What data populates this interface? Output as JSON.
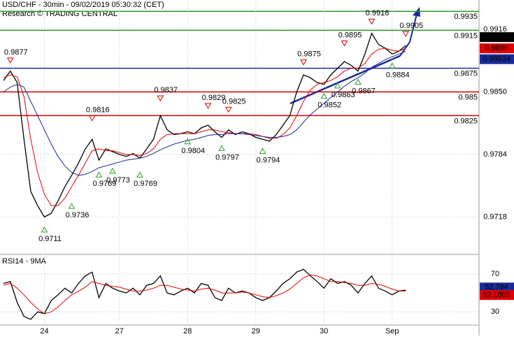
{
  "chart_data": [
    {
      "type": "line",
      "title": "USD/CHF - 30min - 09/02/2019 05:30:32 (CET)",
      "subtitle": "Research © TRADING CENTRAL",
      "categories": [
        null,
        null,
        null,
        null,
        null,
        null,
        "24",
        null,
        null,
        null,
        null,
        null,
        null,
        null,
        null,
        null,
        null,
        "27",
        null,
        null,
        null,
        null,
        null,
        null,
        null,
        null,
        null,
        "28",
        null,
        null,
        null,
        null,
        null,
        null,
        null,
        null,
        null,
        "29",
        null,
        null,
        null,
        null,
        null,
        null,
        null,
        null,
        null,
        "30",
        null,
        null,
        null,
        null,
        null,
        null,
        null,
        null,
        null,
        "Sep",
        null,
        null
      ],
      "ylim": [
        0.968,
        0.9947
      ],
      "yticks": [
        0.9718,
        0.9784,
        {
          "value": 0.985,
          "label": "0.9850"
        },
        0.9916
      ],
      "series": [
        {
          "color": "#000000",
          "values": [
            0.9862,
            0.9872,
            0.986,
            0.98,
            0.9745,
            0.973,
            0.9718,
            0.9722,
            0.9735,
            0.975,
            0.9762,
            0.9775,
            0.979,
            0.98,
            0.9778,
            0.979,
            0.9787,
            0.9784,
            0.9782,
            0.9785,
            0.978,
            0.979,
            0.98,
            0.9825,
            0.981,
            0.9805,
            0.9806,
            0.9808,
            0.9806,
            0.9812,
            0.9815,
            0.9808,
            0.9802,
            0.981,
            0.9805,
            0.9808,
            0.9806,
            0.9802,
            0.98,
            0.9798,
            0.9805,
            0.9815,
            0.9825,
            0.985,
            0.9868,
            0.9865,
            0.986,
            0.9858,
            0.9868,
            0.9875,
            0.9882,
            0.9878,
            0.9872,
            0.989,
            0.9912,
            0.99,
            0.9896,
            0.989,
            0.9893,
            0.9899
          ]
        },
        {
          "color": "#e00000",
          "values": [
            0.9865,
            0.9868,
            0.9866,
            0.9845,
            0.98,
            0.9765,
            0.9742,
            0.973,
            0.973,
            0.9738,
            0.975,
            0.9762,
            0.9775,
            0.9788,
            0.979,
            0.9788,
            0.9788,
            0.9786,
            0.9784,
            0.9784,
            0.9783,
            0.9785,
            0.979,
            0.98,
            0.9805,
            0.9806,
            0.9806,
            0.9806,
            0.9806,
            0.9808,
            0.981,
            0.981,
            0.9808,
            0.9807,
            0.9806,
            0.9806,
            0.9806,
            0.9805,
            0.9803,
            0.9801,
            0.9801,
            0.9805,
            0.9812,
            0.9825,
            0.984,
            0.9852,
            0.9858,
            0.986,
            0.9862,
            0.9866,
            0.9872,
            0.9875,
            0.9875,
            0.988,
            0.989,
            0.9895,
            0.9896,
            0.9894,
            0.9893,
            0.9896
          ]
        },
        {
          "color": "#1a2a9a",
          "values": [
            0.985,
            0.9855,
            0.9858,
            0.9855,
            0.984,
            0.9825,
            0.981,
            0.9795,
            0.9782,
            0.9772,
            0.9765,
            0.9762,
            0.9763,
            0.9766,
            0.977,
            0.9772,
            0.9774,
            0.9776,
            0.9778,
            0.9779,
            0.978,
            0.9782,
            0.9785,
            0.9789,
            0.9792,
            0.9795,
            0.9797,
            0.9799,
            0.98,
            0.9802,
            0.9804,
            0.9805,
            0.9805,
            0.9806,
            0.9806,
            0.9806,
            0.9805,
            0.9804,
            0.9803,
            0.9802,
            0.9802,
            0.9803,
            0.9805,
            0.981,
            0.9818,
            0.9826,
            0.9832,
            0.9838,
            0.9844,
            0.985,
            0.9856,
            0.9861,
            0.9865,
            0.987,
            0.9876,
            0.988,
            0.9884,
            0.9887,
            0.989,
            0.9893
          ]
        }
      ],
      "highs": [
        null,
        0.9877,
        null,
        null,
        null,
        null,
        null,
        null,
        null,
        null,
        null,
        null,
        null,
        0.9816,
        null,
        null,
        null,
        null,
        null,
        null,
        null,
        null,
        null,
        0.9837,
        null,
        null,
        null,
        null,
        null,
        null,
        0.9829,
        null,
        null,
        0.9825,
        null,
        null,
        null,
        null,
        null,
        null,
        null,
        null,
        null,
        null,
        0.9875,
        null,
        null,
        null,
        null,
        null,
        0.9895,
        null,
        null,
        null,
        0.9918,
        null,
        null,
        null,
        null,
        0.9905
      ],
      "lows": [
        null,
        null,
        null,
        null,
        null,
        null,
        0.9711,
        null,
        null,
        null,
        0.9736,
        null,
        null,
        null,
        0.9769,
        null,
        0.9773,
        null,
        null,
        null,
        0.9769,
        null,
        null,
        null,
        null,
        null,
        null,
        0.9804,
        null,
        null,
        null,
        null,
        0.9797,
        null,
        null,
        null,
        null,
        null,
        0.9794,
        null,
        null,
        null,
        null,
        null,
        null,
        null,
        null,
        0.9852,
        null,
        0.9863,
        null,
        null,
        0.9867,
        null,
        null,
        null,
        null,
        0.9884,
        null,
        null
      ],
      "levels": [
        0.9935,
        0.9915,
        0.9875,
        0.985,
        0.9825
      ],
      "level_colors": [
        "#2e9a2e",
        "#2e9a2e",
        "#1a2a9a",
        "#d00000",
        "#d00000"
      ],
      "price_tags": [
        0.9899,
        0.9896,
        0.98934
      ],
      "price_tag_colors": [
        "#000000",
        "#e00000",
        "#1a2a9a"
      ]
    },
    {
      "type": "line",
      "title": "RSI14 - 9MA",
      "ylim": [
        16,
        90
      ],
      "yticks": [
        30,
        70
      ],
      "series": [
        {
          "color": "#000000",
          "values": [
            60,
            62,
            40,
            25,
            22,
            30,
            28,
            42,
            48,
            55,
            50,
            60,
            68,
            72,
            45,
            60,
            55,
            52,
            50,
            55,
            48,
            58,
            60,
            68,
            50,
            48,
            52,
            55,
            50,
            60,
            58,
            45,
            42,
            55,
            50,
            52,
            50,
            45,
            42,
            45,
            52,
            60,
            65,
            72,
            75,
            68,
            62,
            55,
            65,
            60,
            62,
            58,
            50,
            60,
            68,
            55,
            52,
            48,
            52,
            53
          ]
        },
        {
          "color": "#e00000",
          "values": [
            58,
            60,
            55,
            48,
            40,
            33,
            28,
            30,
            35,
            42,
            48,
            52,
            56,
            62,
            60,
            58,
            57,
            56,
            54,
            52,
            52,
            53,
            55,
            58,
            58,
            56,
            54,
            53,
            52,
            54,
            55,
            53,
            50,
            50,
            50,
            51,
            50,
            48,
            46,
            45,
            47,
            50,
            54,
            60,
            66,
            69,
            68,
            65,
            62,
            62,
            61,
            60,
            58,
            58,
            60,
            59,
            57,
            54,
            52,
            52
          ]
        }
      ],
      "price_tags": [
        52.764,
        52.1805
      ],
      "price_tag_colors": [
        "#1a2a9a",
        "#e00000"
      ]
    }
  ]
}
